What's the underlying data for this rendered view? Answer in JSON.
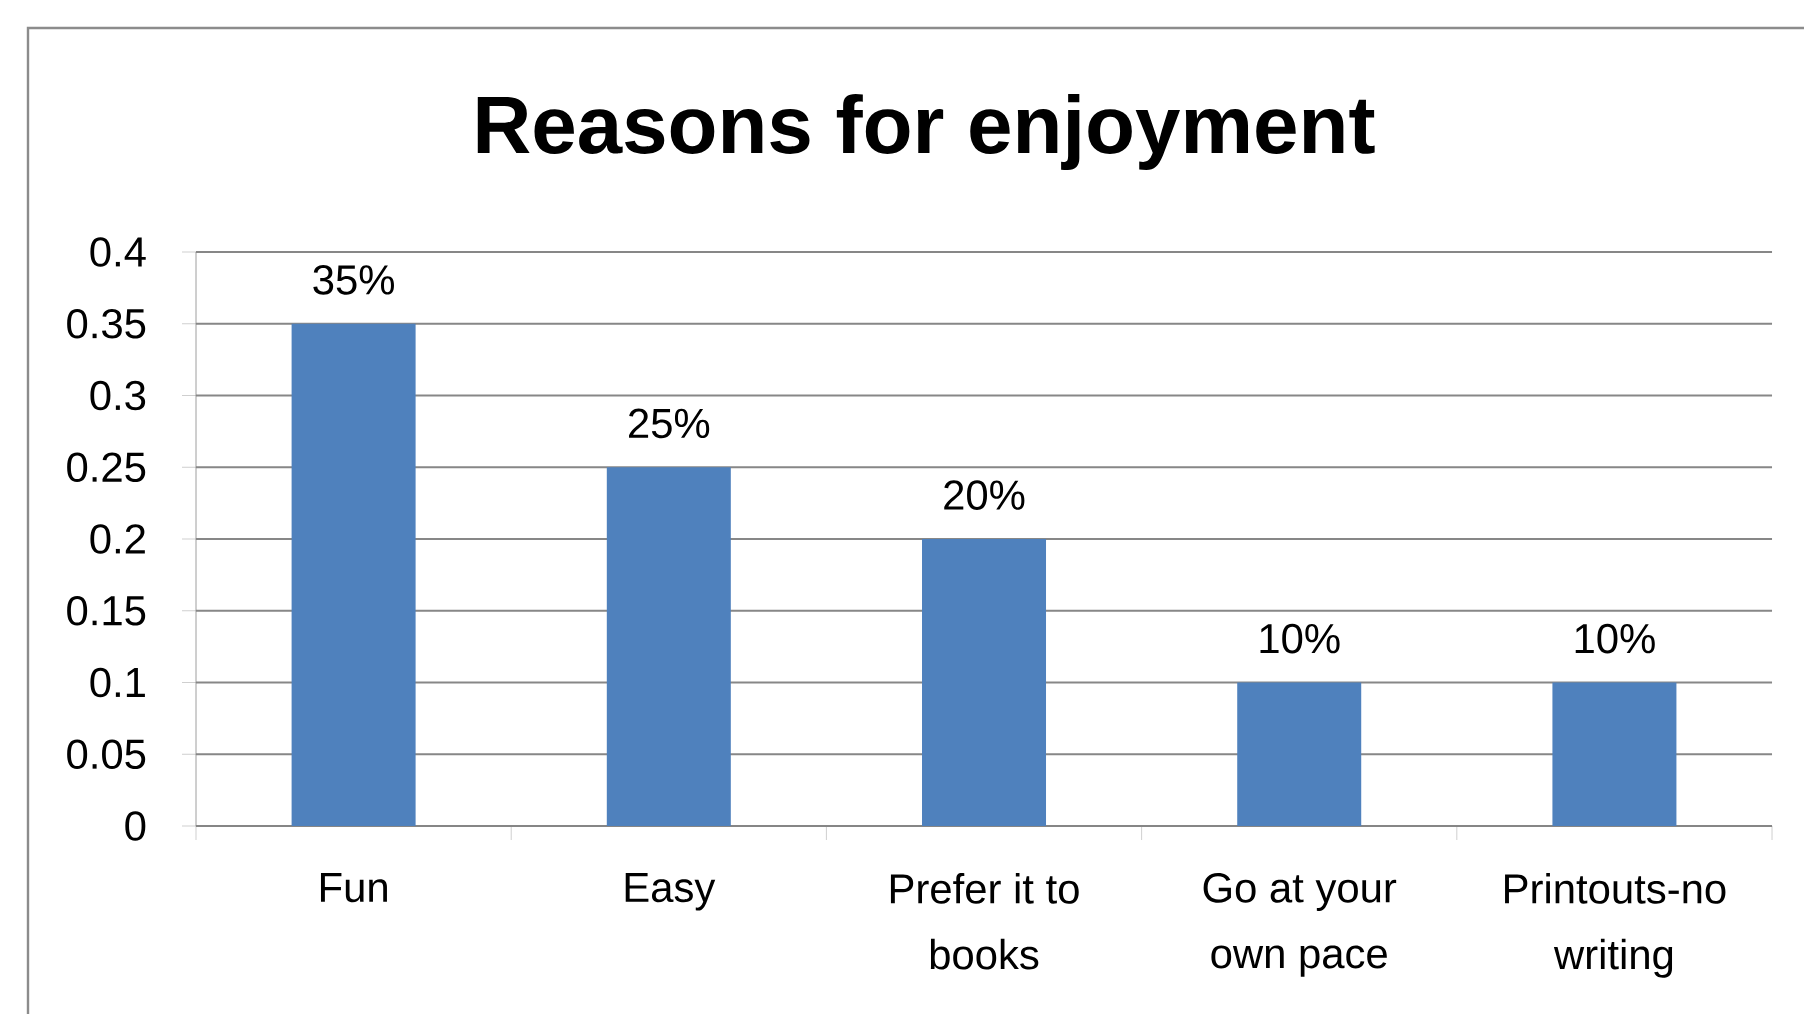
{
  "chart_data": {
    "type": "bar",
    "title": "Reasons for enjoyment",
    "categories": [
      "Fun",
      "Easy",
      "Prefer it to books",
      "Go at your own pace",
      "Printouts-no writing"
    ],
    "values": [
      0.35,
      0.25,
      0.2,
      0.1,
      0.1
    ],
    "value_labels": [
      "35%",
      "25%",
      "20%",
      "10%",
      "10%"
    ],
    "color": "#4f81bd",
    "ylim": [
      0,
      0.4
    ],
    "yticks": [
      0,
      0.05,
      0.1,
      0.15,
      0.2,
      0.25,
      0.3,
      0.35,
      0.4
    ],
    "grid": "y"
  }
}
